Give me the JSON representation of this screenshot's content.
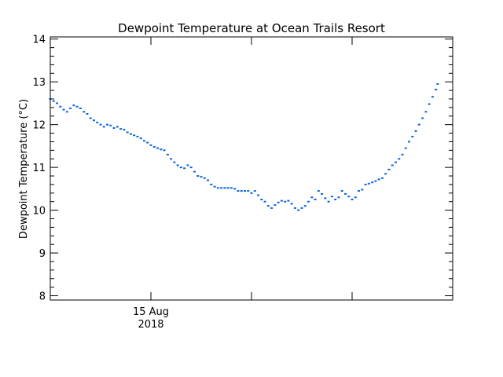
{
  "chart_data": {
    "type": "scatter",
    "title": "Dewpoint Temperature at Ocean Trails Resort",
    "ylabel": "Dewpoint Temperature (°C)",
    "xlabel": "",
    "x_tick_label": "15 Aug",
    "x_tick_sublabel": "2018",
    "x_unit": "hours",
    "xlim": [
      0,
      24
    ],
    "ylim": [
      7.9,
      14.05
    ],
    "y_ticks": [
      8,
      9,
      10,
      11,
      12,
      13,
      14
    ],
    "grid": false,
    "marker_color": "#0a64dc",
    "series": [
      {
        "points": [
          [
            0.0,
            12.6
          ],
          [
            0.2,
            12.55
          ],
          [
            0.4,
            12.5
          ],
          [
            0.6,
            12.42
          ],
          [
            0.8,
            12.35
          ],
          [
            1.0,
            12.3
          ],
          [
            1.2,
            12.38
          ],
          [
            1.4,
            12.45
          ],
          [
            1.6,
            12.42
          ],
          [
            1.8,
            12.38
          ],
          [
            2.0,
            12.3
          ],
          [
            2.2,
            12.25
          ],
          [
            2.4,
            12.15
          ],
          [
            2.6,
            12.1
          ],
          [
            2.8,
            12.05
          ],
          [
            3.0,
            12.0
          ],
          [
            3.2,
            11.95
          ],
          [
            3.4,
            12.0
          ],
          [
            3.6,
            11.98
          ],
          [
            3.8,
            11.92
          ],
          [
            4.0,
            11.95
          ],
          [
            4.2,
            11.9
          ],
          [
            4.4,
            11.88
          ],
          [
            4.6,
            11.82
          ],
          [
            4.8,
            11.78
          ],
          [
            5.0,
            11.75
          ],
          [
            5.2,
            11.72
          ],
          [
            5.4,
            11.68
          ],
          [
            5.6,
            11.62
          ],
          [
            5.8,
            11.58
          ],
          [
            6.0,
            11.52
          ],
          [
            6.2,
            11.48
          ],
          [
            6.4,
            11.45
          ],
          [
            6.6,
            11.42
          ],
          [
            6.8,
            11.4
          ],
          [
            7.0,
            11.3
          ],
          [
            7.2,
            11.2
          ],
          [
            7.4,
            11.12
          ],
          [
            7.6,
            11.05
          ],
          [
            7.8,
            11.0
          ],
          [
            8.0,
            10.98
          ],
          [
            8.2,
            11.05
          ],
          [
            8.4,
            11.0
          ],
          [
            8.6,
            10.9
          ],
          [
            8.8,
            10.8
          ],
          [
            9.0,
            10.78
          ],
          [
            9.2,
            10.75
          ],
          [
            9.4,
            10.7
          ],
          [
            9.6,
            10.6
          ],
          [
            9.8,
            10.55
          ],
          [
            10.0,
            10.52
          ],
          [
            10.2,
            10.52
          ],
          [
            10.4,
            10.52
          ],
          [
            10.6,
            10.52
          ],
          [
            10.8,
            10.52
          ],
          [
            11.0,
            10.5
          ],
          [
            11.2,
            10.45
          ],
          [
            11.4,
            10.45
          ],
          [
            11.6,
            10.45
          ],
          [
            11.8,
            10.45
          ],
          [
            12.0,
            10.4
          ],
          [
            12.2,
            10.45
          ],
          [
            12.4,
            10.35
          ],
          [
            12.6,
            10.25
          ],
          [
            12.8,
            10.2
          ],
          [
            13.0,
            10.1
          ],
          [
            13.2,
            10.05
          ],
          [
            13.4,
            10.12
          ],
          [
            13.6,
            10.18
          ],
          [
            13.8,
            10.22
          ],
          [
            14.0,
            10.2
          ],
          [
            14.2,
            10.22
          ],
          [
            14.4,
            10.15
          ],
          [
            14.6,
            10.05
          ],
          [
            14.8,
            10.0
          ],
          [
            15.0,
            10.05
          ],
          [
            15.2,
            10.1
          ],
          [
            15.4,
            10.2
          ],
          [
            15.6,
            10.3
          ],
          [
            15.8,
            10.25
          ],
          [
            16.0,
            10.45
          ],
          [
            16.2,
            10.38
          ],
          [
            16.4,
            10.28
          ],
          [
            16.6,
            10.2
          ],
          [
            16.8,
            10.32
          ],
          [
            17.0,
            10.25
          ],
          [
            17.2,
            10.3
          ],
          [
            17.4,
            10.45
          ],
          [
            17.6,
            10.38
          ],
          [
            17.8,
            10.32
          ],
          [
            18.0,
            10.25
          ],
          [
            18.2,
            10.3
          ],
          [
            18.4,
            10.45
          ],
          [
            18.6,
            10.48
          ],
          [
            18.8,
            10.6
          ],
          [
            19.0,
            10.62
          ],
          [
            19.2,
            10.65
          ],
          [
            19.4,
            10.68
          ],
          [
            19.6,
            10.72
          ],
          [
            19.8,
            10.75
          ],
          [
            20.0,
            10.85
          ],
          [
            20.2,
            10.95
          ],
          [
            20.4,
            11.05
          ],
          [
            20.6,
            11.12
          ],
          [
            20.8,
            11.2
          ],
          [
            21.0,
            11.3
          ],
          [
            21.2,
            11.45
          ],
          [
            21.4,
            11.6
          ],
          [
            21.6,
            11.72
          ],
          [
            21.8,
            11.85
          ],
          [
            22.0,
            12.0
          ],
          [
            22.2,
            12.15
          ],
          [
            22.4,
            12.3
          ],
          [
            22.6,
            12.48
          ],
          [
            22.8,
            12.65
          ],
          [
            23.0,
            12.82
          ],
          [
            23.1,
            12.95
          ]
        ]
      }
    ]
  }
}
